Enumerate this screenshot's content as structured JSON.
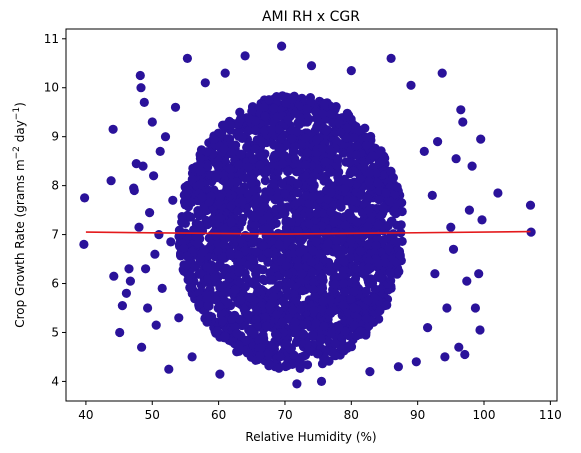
{
  "chart_data": {
    "type": "scatter",
    "title": "AMI RH x CGR",
    "xlabel": "Relative Humidity (%)",
    "ylabel_text": "Crop Growth Rate (grams m",
    "ylabel_unit1": "−2",
    "ylabel_mid": " day",
    "ylabel_unit2": "−1",
    "ylabel_close": ")",
    "xlim": [
      37,
      111
    ],
    "ylim": [
      3.6,
      11.2
    ],
    "x_ticks": [
      40,
      50,
      60,
      70,
      80,
      90,
      100,
      110
    ],
    "x_tick_labels": [
      "40",
      "50",
      "60",
      "70",
      "80",
      "90",
      "100",
      "110"
    ],
    "y_ticks": [
      4,
      5,
      6,
      7,
      8,
      9,
      10,
      11
    ],
    "y_tick_labels": [
      "4",
      "5",
      "6",
      "7",
      "8",
      "9",
      "10",
      "11"
    ],
    "grid": false,
    "scatter_color": "#2a129a",
    "fit_color": "#e41a1c",
    "dense_cloud": {
      "x_range": [
        54,
        88
      ],
      "y_range": [
        4.3,
        9.9
      ],
      "center": [
        71,
        7.05
      ]
    },
    "outlier_points": [
      [
        39.8,
        7.75
      ],
      [
        39.7,
        6.8
      ],
      [
        43.8,
        8.1
      ],
      [
        44.1,
        9.15
      ],
      [
        44.2,
        6.15
      ],
      [
        45.1,
        5.0
      ],
      [
        45.5,
        5.55
      ],
      [
        46.1,
        5.8
      ],
      [
        46.5,
        6.3
      ],
      [
        46.7,
        6.05
      ],
      [
        47.2,
        7.95
      ],
      [
        47.3,
        7.9
      ],
      [
        47.6,
        8.45
      ],
      [
        48.0,
        7.15
      ],
      [
        48.2,
        10.25
      ],
      [
        48.3,
        10.0
      ],
      [
        48.4,
        4.7
      ],
      [
        48.6,
        8.4
      ],
      [
        48.8,
        9.7
      ],
      [
        49.0,
        6.3
      ],
      [
        49.3,
        5.5
      ],
      [
        49.6,
        7.45
      ],
      [
        50.0,
        9.3
      ],
      [
        50.2,
        8.2
      ],
      [
        50.4,
        6.6
      ],
      [
        50.6,
        5.15
      ],
      [
        51.0,
        7.0
      ],
      [
        51.2,
        8.7
      ],
      [
        51.5,
        5.9
      ],
      [
        52.0,
        9.0
      ],
      [
        52.5,
        4.25
      ],
      [
        52.8,
        6.85
      ],
      [
        53.1,
        7.7
      ],
      [
        53.5,
        9.6
      ],
      [
        54.0,
        5.3
      ],
      [
        55.3,
        10.6
      ],
      [
        56.0,
        4.5
      ],
      [
        58.0,
        10.1
      ],
      [
        60.2,
        4.15
      ],
      [
        61.0,
        10.3
      ],
      [
        64.0,
        10.65
      ],
      [
        69.5,
        10.85
      ],
      [
        71.8,
        3.95
      ],
      [
        74.0,
        10.45
      ],
      [
        75.5,
        4.0
      ],
      [
        80.0,
        10.35
      ],
      [
        82.8,
        4.2
      ],
      [
        86.0,
        10.6
      ],
      [
        87.1,
        4.3
      ],
      [
        89.0,
        10.05
      ],
      [
        89.8,
        4.4
      ],
      [
        91.0,
        8.7
      ],
      [
        91.5,
        5.1
      ],
      [
        92.2,
        7.8
      ],
      [
        92.6,
        6.2
      ],
      [
        93.0,
        8.9
      ],
      [
        93.7,
        10.3
      ],
      [
        94.1,
        4.5
      ],
      [
        94.4,
        5.5
      ],
      [
        95.0,
        7.15
      ],
      [
        95.4,
        6.7
      ],
      [
        95.8,
        8.55
      ],
      [
        96.2,
        4.7
      ],
      [
        96.5,
        9.55
      ],
      [
        96.8,
        9.3
      ],
      [
        97.1,
        4.55
      ],
      [
        97.4,
        6.05
      ],
      [
        97.8,
        7.5
      ],
      [
        98.2,
        8.4
      ],
      [
        98.7,
        5.5
      ],
      [
        99.2,
        6.2
      ],
      [
        99.4,
        5.05
      ],
      [
        99.5,
        8.95
      ],
      [
        99.7,
        7.3
      ],
      [
        102.1,
        7.85
      ],
      [
        107.0,
        7.6
      ],
      [
        107.1,
        7.05
      ]
    ],
    "fit_line": {
      "x": [
        40,
        70,
        107
      ],
      "y": [
        7.05,
        7.01,
        7.06
      ]
    }
  }
}
